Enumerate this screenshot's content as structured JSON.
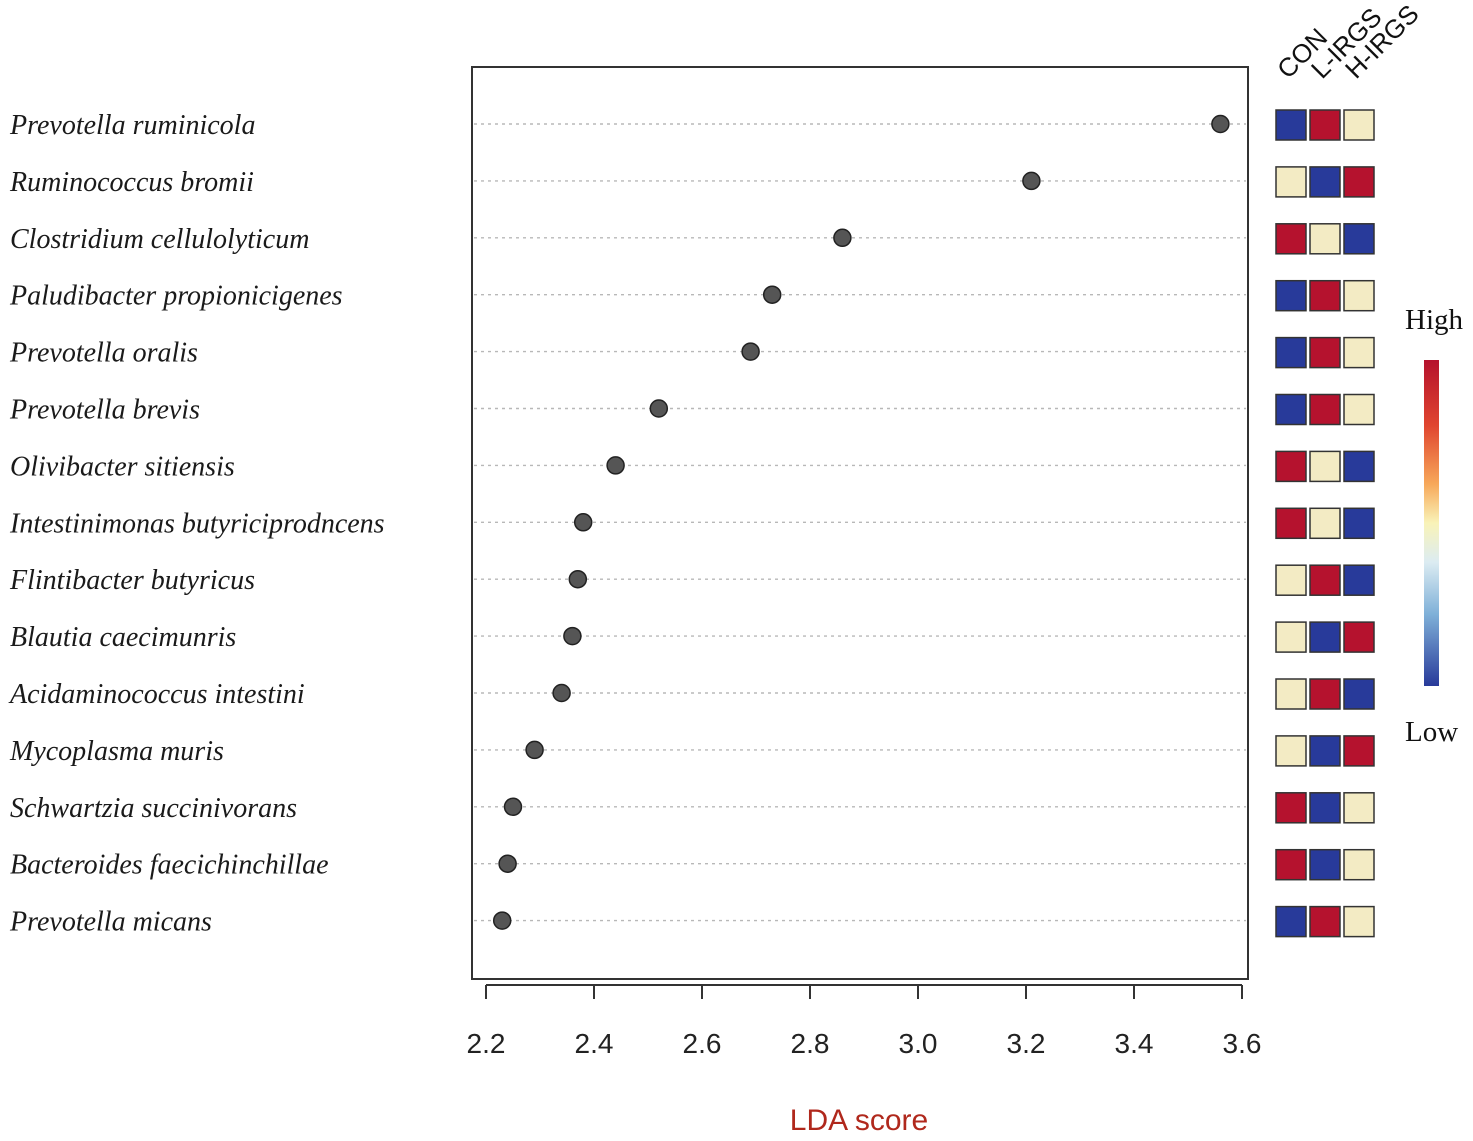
{
  "chart_data": {
    "type": "scatter",
    "xlabel": "LDA score",
    "ylabel": "",
    "xlim": [
      2.18,
      3.62
    ],
    "xticks": [
      "2.2",
      "2.4",
      "2.6",
      "2.8",
      "3.0",
      "3.2",
      "3.4",
      "3.6"
    ],
    "grid": "horizontal dotted",
    "categories": [
      "Prevotella ruminicola",
      "Ruminococcus bromii",
      "Clostridium cellulolyticum",
      "Paludibacter propionicigenes",
      "Prevotella oralis",
      "Prevotella brevis",
      "Olivibacter sitiensis",
      "Intestinimonas butyriciprodncens",
      "Flintibacter butyricus",
      "Blautia caecimunris",
      "Acidaminococcus intestini",
      "Mycoplasma muris",
      "Schwartzia succinivorans",
      "Bacteroides faecichinchillae",
      "Prevotella micans"
    ],
    "values": [
      3.56,
      3.21,
      2.86,
      2.73,
      2.69,
      2.52,
      2.44,
      2.38,
      2.37,
      2.36,
      2.34,
      2.29,
      2.25,
      2.24,
      2.23
    ],
    "groups": [
      "CON",
      "L-IRGS",
      "H-IRGS"
    ],
    "heatmap": [
      [
        "low",
        "high",
        "mid"
      ],
      [
        "mid",
        "low",
        "high"
      ],
      [
        "high",
        "mid",
        "low"
      ],
      [
        "low",
        "high",
        "mid"
      ],
      [
        "low",
        "high",
        "mid"
      ],
      [
        "low",
        "high",
        "mid"
      ],
      [
        "high",
        "mid",
        "low"
      ],
      [
        "high",
        "mid",
        "low"
      ],
      [
        "mid",
        "high",
        "low"
      ],
      [
        "mid",
        "low",
        "high"
      ],
      [
        "mid",
        "high",
        "low"
      ],
      [
        "mid",
        "low",
        "high"
      ],
      [
        "high",
        "low",
        "mid"
      ],
      [
        "high",
        "low",
        "mid"
      ],
      [
        "low",
        "high",
        "mid"
      ]
    ],
    "legend": {
      "high_label": "High",
      "low_label": "Low",
      "placement": "right"
    },
    "colors": {
      "high": "#b5122e",
      "mid": "#f3ebc4",
      "low": "#283a9a",
      "point": "#555555"
    }
  }
}
